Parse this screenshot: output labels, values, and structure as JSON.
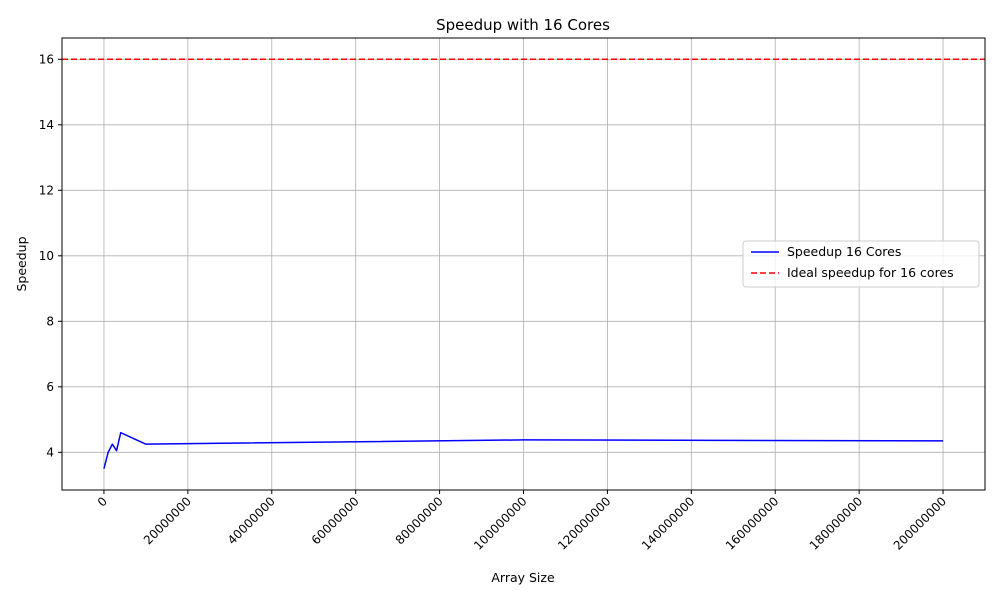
{
  "chart_data": {
    "type": "line",
    "title": "Speedup with 16 Cores",
    "xlabel": "Array Size",
    "ylabel": "Speedup",
    "xlim": [
      -10000000,
      210000000
    ],
    "ylim": [
      2.85,
      16.65
    ],
    "xticks": [
      0,
      20000000,
      40000000,
      60000000,
      80000000,
      100000000,
      120000000,
      140000000,
      160000000,
      180000000,
      200000000
    ],
    "xtick_labels": [
      "0",
      "20000000",
      "40000000",
      "60000000",
      "80000000",
      "100000000",
      "120000000",
      "140000000",
      "160000000",
      "180000000",
      "200000000"
    ],
    "yticks": [
      4,
      6,
      8,
      10,
      12,
      14,
      16
    ],
    "ytick_labels": [
      "4",
      "6",
      "8",
      "10",
      "12",
      "14",
      "16"
    ],
    "grid": true,
    "legend_position": "center-right",
    "series": [
      {
        "name": "Speedup 16 Cores",
        "color": "#0000ff",
        "style": "solid",
        "x": [
          0,
          1000000,
          2000000,
          3000000,
          4000000,
          10000000,
          100000000,
          200000000
        ],
        "y": [
          3.5,
          4.0,
          4.25,
          4.05,
          4.6,
          4.25,
          4.38,
          4.35
        ]
      },
      {
        "name": "Ideal speedup for 16 cores",
        "color": "#ff0000",
        "style": "dashed",
        "hline": 16
      }
    ]
  }
}
